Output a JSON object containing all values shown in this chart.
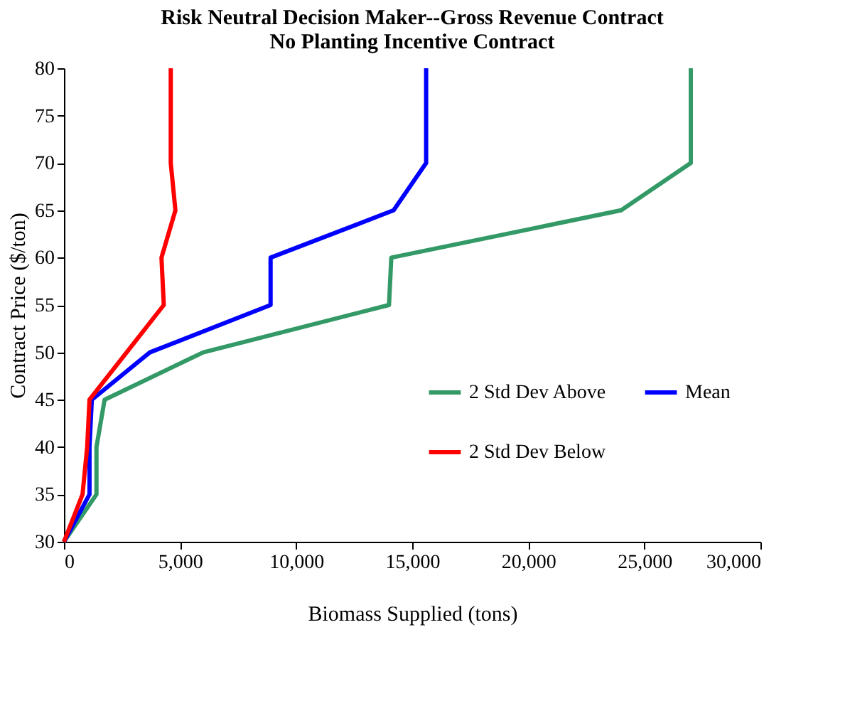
{
  "chart_data": {
    "type": "line",
    "title": "Risk Neutral Decision Maker--Gross Revenue Contract\nNo Planting Incentive Contract",
    "xlabel": "Biomass Supplied (tons)",
    "ylabel": "Contract Price ($/ton)",
    "series": [
      {
        "name": "2 Std Dev Above",
        "color": "#339966",
        "x": [
          0,
          1400,
          1400,
          1750,
          6000,
          14000,
          14100,
          24000,
          27000,
          27000,
          27000
        ],
        "values": [
          30,
          35,
          40,
          45,
          50,
          55,
          60,
          65,
          70,
          75,
          80
        ]
      },
      {
        "name": "Mean",
        "color": "#0000ff",
        "x": [
          0,
          1100,
          1100,
          1200,
          3700,
          8900,
          8900,
          14200,
          15600,
          15600,
          15600
        ],
        "values": [
          30,
          35,
          40,
          45,
          50,
          55,
          60,
          65,
          70,
          75,
          80
        ]
      },
      {
        "name": "2 Std Dev Below",
        "color": "#ff0000",
        "x": [
          0,
          800,
          1000,
          1100,
          2700,
          4300,
          4200,
          4800,
          4600,
          4600,
          4600
        ],
        "values": [
          30,
          35,
          40,
          45,
          50,
          55,
          60,
          65,
          70,
          75,
          80
        ]
      }
    ],
    "xlim": [
      0,
      30000
    ],
    "xticks": [
      0,
      {
        "value": 5000,
        "label": "5,000"
      },
      {
        "value": 10000,
        "label": "10,000"
      },
      {
        "value": 15000,
        "label": "15,000"
      },
      {
        "value": 20000,
        "label": "20,000"
      },
      {
        "value": 25000,
        "label": "25,000"
      },
      {
        "value": 30000,
        "label": "30,000"
      }
    ],
    "ylim": [
      30,
      80
    ],
    "yticks": [
      30,
      35,
      40,
      45,
      50,
      55,
      60,
      65,
      70,
      75,
      80
    ],
    "grid": false,
    "legend": "right",
    "marker": "none",
    "line_style": "solid"
  }
}
